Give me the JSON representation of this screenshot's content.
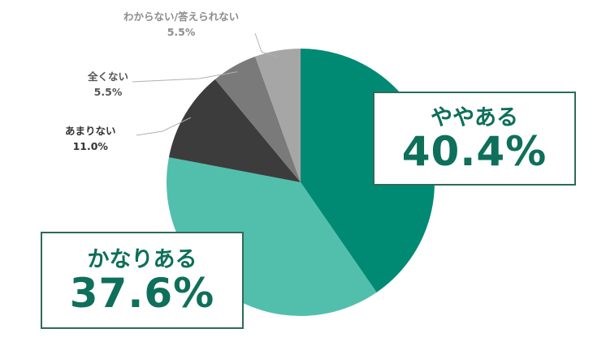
{
  "chart_data": {
    "type": "pie",
    "start_angle_deg": 0,
    "direction": "clockwise",
    "slices": [
      {
        "label": "ややある",
        "value": 40.4,
        "value_label": "40.4%",
        "color": "#008a74"
      },
      {
        "label": "かなりある",
        "value": 37.6,
        "value_label": "37.6%",
        "color": "#52bfad"
      },
      {
        "label": "あまりない",
        "value": 11.0,
        "value_label": "11.0%",
        "color": "#3c3c3c"
      },
      {
        "label": "全くない",
        "value": 5.5,
        "value_label": "5.5%",
        "color": "#7a7a7a"
      },
      {
        "label": "わからない/答えられない",
        "value": 5.5,
        "value_label": "5.5%",
        "color": "#a6a6a6"
      }
    ],
    "label_colors": {
      "callout_text": "#0e6f5a",
      "callout_border": "#2e6b57",
      "dark_label": "#333333",
      "mid_label": "#555555",
      "light_label": "#8c8c8c",
      "leader_line": "#b0b0b0"
    }
  }
}
